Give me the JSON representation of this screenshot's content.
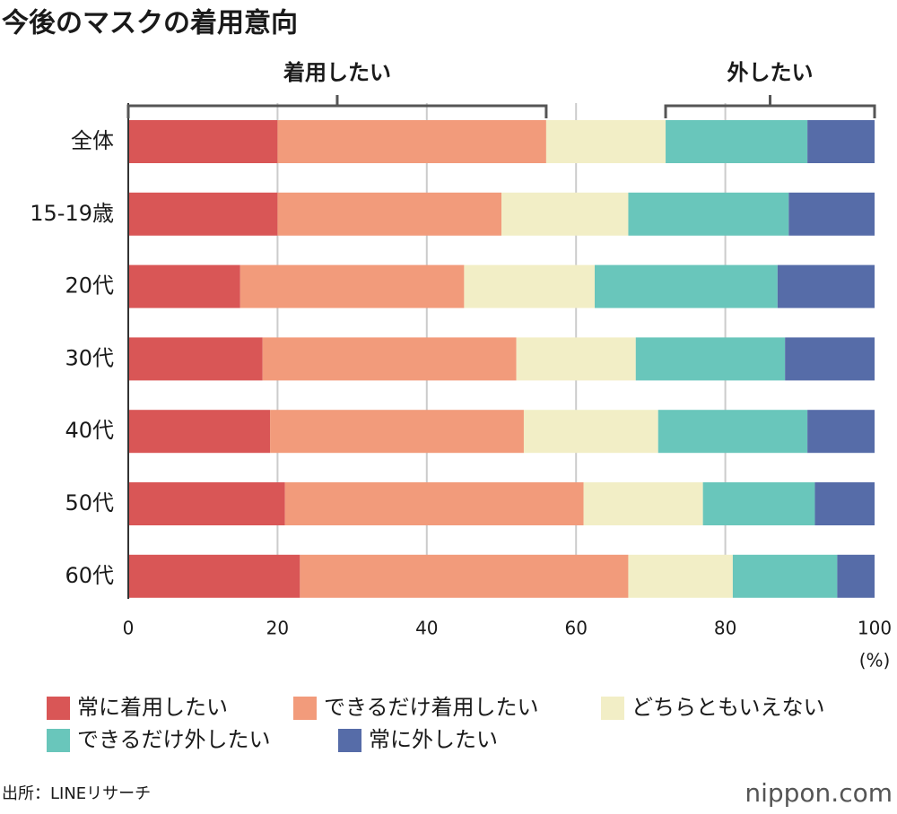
{
  "chart_data": {
    "type": "stacked-bar-horizontal",
    "title": "今後のマスクの着用意向",
    "categories": [
      "全体",
      "15-19歳",
      "20代",
      "30代",
      "40代",
      "50代",
      "60代"
    ],
    "series": [
      {
        "name": "常に着用したい",
        "color": "#d95656",
        "values": [
          20,
          20,
          15,
          18,
          19,
          21,
          23
        ]
      },
      {
        "name": "できるだけ着用したい",
        "color": "#f29b7b",
        "values": [
          36,
          30,
          30,
          34,
          34,
          40,
          44
        ]
      },
      {
        "name": "どちらともいえない",
        "color": "#f2eec6",
        "values": [
          16,
          17,
          17.5,
          16,
          18,
          16,
          14
        ]
      },
      {
        "name": "できるだけ外したい",
        "color": "#69c6bb",
        "values": [
          19,
          21.5,
          24.5,
          20,
          20,
          15,
          14
        ]
      },
      {
        "name": "常に外したい",
        "color": "#566ca8",
        "values": [
          9,
          11.5,
          13,
          12,
          9,
          8,
          5
        ]
      }
    ],
    "xlim": [
      0,
      100
    ],
    "xticks": [
      0,
      20,
      40,
      60,
      80,
      100
    ],
    "xlabel": "(%)",
    "grid": true,
    "annotations": [
      "着用したい",
      "外したい"
    ],
    "source": "出所：LINEリサーチ",
    "logo": "nippon.com"
  }
}
